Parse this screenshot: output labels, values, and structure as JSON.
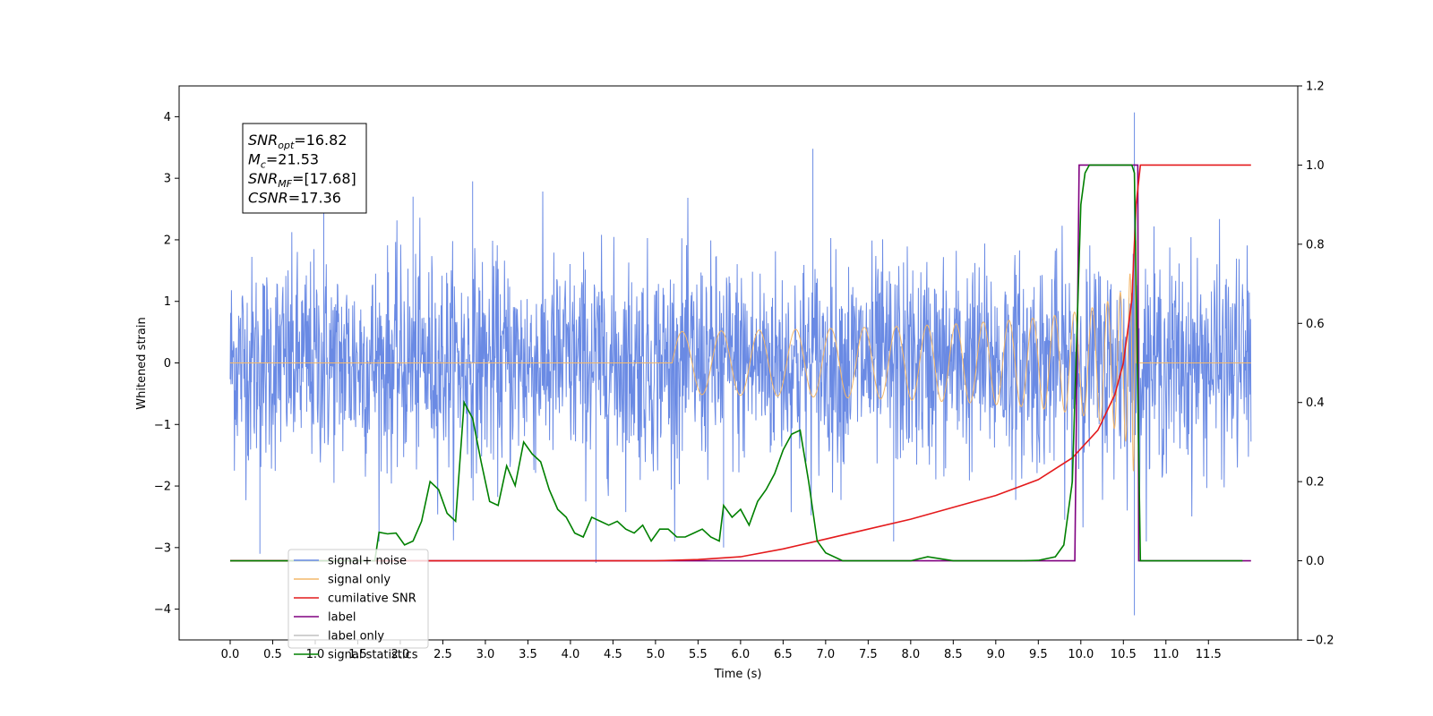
{
  "chart_data": {
    "type": "line",
    "xlabel": "Time (s)",
    "ylabel": "Whitened strain",
    "ylabel_right": "",
    "xlim": [
      -0.6,
      12.55
    ],
    "ylim": [
      -4.5,
      4.5
    ],
    "ylim_right": [
      -0.2,
      1.2
    ],
    "x_ticks": [
      0.0,
      0.5,
      1.0,
      1.5,
      2.0,
      2.5,
      3.0,
      3.5,
      4.0,
      4.5,
      5.0,
      5.5,
      6.0,
      6.5,
      7.0,
      7.5,
      8.0,
      8.5,
      9.0,
      9.5,
      10.0,
      10.5,
      11.0,
      11.5
    ],
    "x_tick_labels": [
      "0.0",
      "0.5",
      "1.0",
      "1.5",
      "2.0",
      "2.5",
      "3.0",
      "3.5",
      "4.0",
      "4.5",
      "5.0",
      "5.5",
      "6.0",
      "6.5",
      "7.0",
      "7.5",
      "8.0",
      "8.5",
      "9.0",
      "9.5",
      "10.0",
      "10.5",
      "11.0",
      "11.5"
    ],
    "y_ticks": [
      -4,
      -3,
      -2,
      -1,
      0,
      1,
      2,
      3,
      4
    ],
    "y_tick_labels": [
      "−4",
      "−3",
      "−2",
      "−1",
      "0",
      "1",
      "2",
      "3",
      "4"
    ],
    "y_right_ticks": [
      -0.2,
      0.0,
      0.2,
      0.4,
      0.6,
      0.8,
      1.0,
      1.2
    ],
    "y_right_tick_labels": [
      "−0.2",
      "0.0",
      "0.2",
      "0.4",
      "0.6",
      "0.8",
      "1.0",
      "1.2"
    ],
    "grid": false,
    "legend_position": "lower-left",
    "annotation": {
      "lines": [
        {
          "var": "SNR",
          "sub": "opt",
          "text": "=16.82"
        },
        {
          "var": "M",
          "sub": "c",
          "text": "=21.53"
        },
        {
          "var": "SNR",
          "sub": "MF",
          "text": "=[17.68]"
        },
        {
          "var": "CSNR",
          "sub": "",
          "text": "=17.36"
        }
      ]
    },
    "series": [
      {
        "name": "signal+ noise",
        "color": "#6a8ae4",
        "axis": "left",
        "description_points": {
          "x_range": [
            0.0,
            12.0
          ],
          "envelope": 1.6,
          "peaks": [
            [
              0.35,
              -3.1
            ],
            [
              1.1,
              2.85
            ],
            [
              2.15,
              2.7
            ],
            [
              2.85,
              2.95
            ],
            [
              4.3,
              -3.25
            ],
            [
              6.85,
              3.48
            ],
            [
              10.63,
              4.07
            ],
            [
              10.63,
              -4.1
            ],
            [
              5.8,
              -3.0
            ],
            [
              7.8,
              -2.9
            ]
          ]
        }
      },
      {
        "name": "signal only",
        "color": "#f4b86a",
        "axis": "left",
        "chirp": {
          "start": 5.2,
          "merger": 10.65,
          "peak_amplitude": 2.2
        }
      },
      {
        "name": "cumilative SNR",
        "color": "#e41a1c",
        "axis": "right",
        "x": [
          0.0,
          5.0,
          5.5,
          6.0,
          6.5,
          7.0,
          7.5,
          8.0,
          8.5,
          9.0,
          9.5,
          9.9,
          10.2,
          10.4,
          10.5,
          10.6,
          10.65,
          10.7,
          12.0
        ],
        "y": [
          0.0,
          0.0,
          0.003,
          0.01,
          0.03,
          0.055,
          0.08,
          0.105,
          0.135,
          0.165,
          0.205,
          0.26,
          0.33,
          0.42,
          0.5,
          0.66,
          0.9,
          1.0,
          1.0
        ]
      },
      {
        "name": "label",
        "color": "#800080",
        "axis": "right",
        "x": [
          0.0,
          9.93,
          9.98,
          10.67,
          10.68,
          12.0
        ],
        "y": [
          0.0,
          0.0,
          1.0,
          1.0,
          0.0,
          0.0
        ]
      },
      {
        "name": "label only",
        "color": "#c0c0c0",
        "axis": "right",
        "x": [],
        "y": []
      },
      {
        "name": "signal statistics",
        "color": "#008000",
        "axis": "right",
        "x": [
          0.0,
          1.7,
          1.75,
          1.85,
          1.95,
          2.05,
          2.15,
          2.25,
          2.35,
          2.45,
          2.55,
          2.65,
          2.75,
          2.85,
          2.95,
          3.05,
          3.15,
          3.25,
          3.35,
          3.45,
          3.55,
          3.65,
          3.75,
          3.85,
          3.95,
          4.05,
          4.15,
          4.25,
          4.35,
          4.45,
          4.55,
          4.65,
          4.75,
          4.85,
          4.95,
          5.05,
          5.15,
          5.25,
          5.35,
          5.45,
          5.55,
          5.65,
          5.75,
          5.8,
          5.9,
          6.0,
          6.1,
          6.2,
          6.3,
          6.4,
          6.5,
          6.6,
          6.7,
          6.8,
          6.9,
          7.0,
          7.2,
          7.5,
          8.0,
          8.2,
          8.5,
          9.0,
          9.3,
          9.5,
          9.7,
          9.8,
          9.9,
          10.0,
          10.05,
          10.1,
          10.2,
          10.4,
          10.6,
          10.63,
          10.7,
          11.9
        ],
        "y": [
          0.0,
          0.0,
          0.072,
          0.068,
          0.07,
          0.04,
          0.05,
          0.1,
          0.2,
          0.18,
          0.12,
          0.1,
          0.4,
          0.36,
          0.25,
          0.15,
          0.14,
          0.24,
          0.19,
          0.3,
          0.27,
          0.25,
          0.18,
          0.13,
          0.11,
          0.07,
          0.06,
          0.11,
          0.1,
          0.09,
          0.1,
          0.08,
          0.07,
          0.09,
          0.05,
          0.08,
          0.08,
          0.06,
          0.06,
          0.07,
          0.08,
          0.06,
          0.05,
          0.14,
          0.11,
          0.13,
          0.09,
          0.15,
          0.18,
          0.22,
          0.28,
          0.32,
          0.33,
          0.2,
          0.05,
          0.02,
          0.0,
          0.0,
          0.0,
          0.01,
          0.0,
          0.0,
          0.0,
          0.001,
          0.01,
          0.04,
          0.2,
          0.9,
          0.98,
          1.0,
          1.0,
          1.0,
          1.0,
          0.98,
          0.0,
          0.0
        ]
      }
    ]
  }
}
